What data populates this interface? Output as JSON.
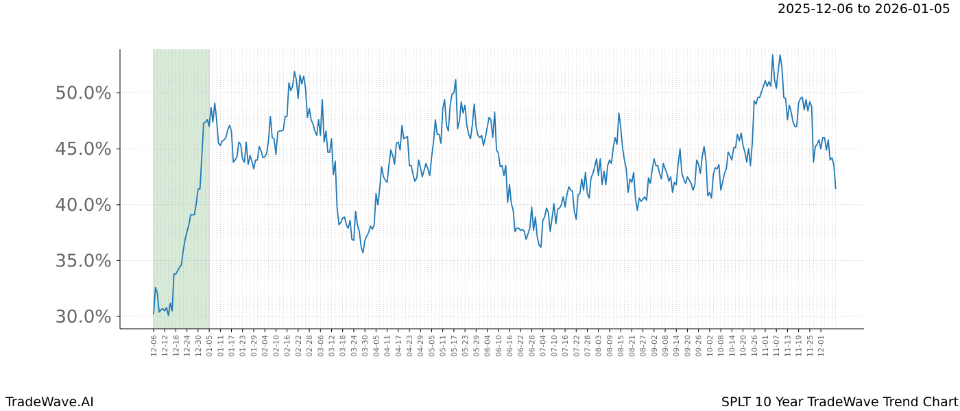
{
  "header": {
    "date_range": "2025-12-06 to 2026-01-05"
  },
  "footer": {
    "brand": "TradeWave.AI",
    "chart_title": "SPLT 10 Year TradeWave Trend Chart"
  },
  "colors": {
    "line": "#1f77b4",
    "highlight": "#d8ead8",
    "highlight_edge": "#c8c8c8",
    "grid": "#b0b0b0",
    "tick_text": "#666666"
  },
  "chart_data": {
    "type": "line",
    "title": "SPLT 10 Year TradeWave Trend Chart",
    "xlabel": "",
    "ylabel": "",
    "ylim": [
      28.9,
      53.9
    ],
    "y_ticks": [
      {
        "value": 30,
        "label": "30.0%"
      },
      {
        "value": 35,
        "label": "35.0%"
      },
      {
        "value": 40,
        "label": "40.0%"
      },
      {
        "value": 45,
        "label": "45.0%"
      },
      {
        "value": 50,
        "label": "50.0%"
      }
    ],
    "x_tick_labels": [
      "12-06",
      "12-12",
      "12-18",
      "12-24",
      "12-30",
      "01-05",
      "01-11",
      "01-17",
      "01-23",
      "01-29",
      "02-04",
      "02-10",
      "02-16",
      "02-22",
      "02-28",
      "03-06",
      "03-12",
      "03-18",
      "03-24",
      "03-30",
      "04-05",
      "04-11",
      "04-17",
      "04-23",
      "04-29",
      "05-05",
      "05-11",
      "05-17",
      "05-23",
      "05-29",
      "06-04",
      "06-10",
      "06-16",
      "06-22",
      "06-28",
      "07-04",
      "07-10",
      "07-16",
      "07-22",
      "07-28",
      "08-03",
      "08-09",
      "08-15",
      "08-21",
      "08-27",
      "09-02",
      "09-08",
      "09-14",
      "09-20",
      "09-26",
      "10-02",
      "10-08",
      "10-14",
      "10-20",
      "10-26",
      "11-01",
      "11-07",
      "11-13",
      "11-19",
      "11-25",
      "12-01"
    ],
    "x_tick_step_days": 6,
    "highlight": {
      "start_index": 0,
      "end_index": 30
    },
    "grid": true,
    "series": [
      {
        "name": "",
        "values": [
          30.2,
          32.6,
          32.1,
          30.4,
          30.6,
          30.7,
          30.5,
          30.8,
          30.1,
          31.2,
          30.5,
          33.8,
          33.8,
          34.1,
          34.4,
          34.6,
          35.9,
          36.9,
          37.6,
          38.2,
          39.1,
          39.1,
          39.1,
          40.1,
          41.4,
          41.4,
          44.3,
          47.3,
          47.4,
          47.6,
          47.0,
          48.7,
          47.4,
          49.1,
          47.6,
          45.5,
          45.3,
          45.7,
          45.8,
          46.0,
          46.7,
          47.1,
          46.6,
          43.8,
          44.0,
          44.3,
          45.6,
          45.4,
          44.1,
          43.8,
          45.6,
          43.6,
          44.4,
          43.9,
          43.2,
          44.0,
          44.0,
          45.2,
          44.8,
          44.2,
          44.3,
          44.6,
          45.8,
          47.9,
          46.0,
          45.9,
          44.5,
          46.5,
          46.6,
          46.6,
          46.7,
          47.9,
          47.9,
          50.9,
          50.2,
          50.6,
          51.9,
          51.2,
          49.5,
          51.6,
          50.8,
          51.5,
          50.4,
          47.8,
          48.6,
          47.6,
          47.2,
          46.6,
          46.2,
          47.6,
          46.2,
          49.4,
          45.6,
          46.6,
          44.7,
          44.7,
          45.9,
          42.7,
          43.9,
          39.7,
          38.2,
          38.4,
          38.8,
          38.9,
          38.2,
          37.9,
          38.6,
          36.9,
          36.8,
          39.4,
          38.2,
          37.6,
          36.2,
          35.7,
          36.8,
          37.2,
          37.5,
          38.1,
          37.8,
          38.2,
          41.0,
          40.0,
          41.5,
          43.4,
          42.5,
          42.2,
          42.0,
          43.6,
          44.9,
          44.4,
          43.6,
          45.5,
          45.6,
          44.9,
          47.1,
          45.9,
          46.0,
          46.1,
          43.5,
          43.5,
          42.7,
          42.1,
          42.4,
          44.0,
          43.3,
          42.5,
          43.1,
          43.7,
          43.2,
          42.6,
          44.3,
          45.6,
          47.6,
          46.3,
          46.3,
          45.5,
          48.6,
          49.4,
          47.1,
          46.6,
          48.9,
          49.9,
          50.0,
          51.2,
          46.8,
          47.5,
          49.2,
          48.2,
          48.9,
          47.1,
          46.3,
          45.9,
          47.2,
          49.0,
          47.0,
          46.2,
          46.0,
          46.2,
          45.3,
          46.0,
          46.9,
          47.8,
          47.6,
          46.0,
          48.3,
          44.9,
          44.6,
          43.4,
          43.5,
          42.6,
          43.5,
          40.2,
          41.8,
          40.1,
          39.5,
          37.6,
          37.9,
          37.9,
          37.7,
          37.8,
          37.6,
          36.9,
          37.4,
          37.9,
          39.8,
          37.7,
          38.9,
          37.1,
          36.4,
          36.2,
          38.6,
          38.9,
          39.7,
          39.3,
          37.6,
          38.8,
          40.1,
          38.3,
          39.6,
          39.7,
          40.0,
          40.7,
          39.8,
          40.9,
          41.6,
          41.3,
          41.2,
          39.4,
          38.7,
          40.9,
          41.0,
          42.3,
          41.3,
          42.9,
          41.0,
          40.6,
          42.4,
          42.8,
          43.4,
          44.1,
          42.6,
          44.1,
          41.8,
          43.0,
          41.8,
          43.5,
          44.0,
          43.7,
          45.1,
          46.0,
          45.4,
          48.2,
          46.9,
          45.1,
          44.0,
          43.2,
          41.1,
          42.3,
          42.0,
          42.9,
          40.5,
          39.5,
          40.6,
          40.3,
          40.5,
          40.7,
          40.4,
          42.4,
          41.9,
          43.1,
          44.1,
          43.5,
          43.5,
          42.8,
          42.3,
          43.7,
          43.2,
          42.8,
          42.1,
          42.5,
          41.1,
          42.0,
          41.8,
          43.6,
          45.0,
          42.8,
          42.3,
          41.9,
          42.5,
          42.2,
          41.9,
          41.3,
          41.8,
          44.0,
          43.6,
          42.8,
          44.3,
          45.2,
          44.0,
          40.8,
          41.1,
          40.6,
          42.7,
          43.3,
          43.2,
          43.6,
          41.3,
          42.0,
          42.8,
          43.2,
          44.7,
          44.4,
          44.0,
          45.1,
          45.1,
          46.3,
          45.7,
          46.4,
          45.3,
          44.7,
          43.8,
          45.0,
          43.5,
          45.5,
          49.3,
          49.0,
          49.6,
          49.6,
          50.1,
          50.6,
          51.1,
          50.6,
          51.0,
          50.6,
          53.4,
          51.2,
          50.4,
          52.0,
          53.4,
          52.3,
          49.6,
          49.5,
          47.6,
          48.9,
          48.3,
          47.4,
          47.0,
          47.0,
          49.1,
          49.5,
          49.6,
          48.5,
          49.4,
          48.4,
          49.2,
          48.8,
          43.8,
          45.2,
          45.4,
          45.8,
          45.0,
          46.0,
          46.0,
          44.9,
          45.8,
          44.0,
          44.2,
          43.6,
          41.4
        ]
      }
    ]
  }
}
